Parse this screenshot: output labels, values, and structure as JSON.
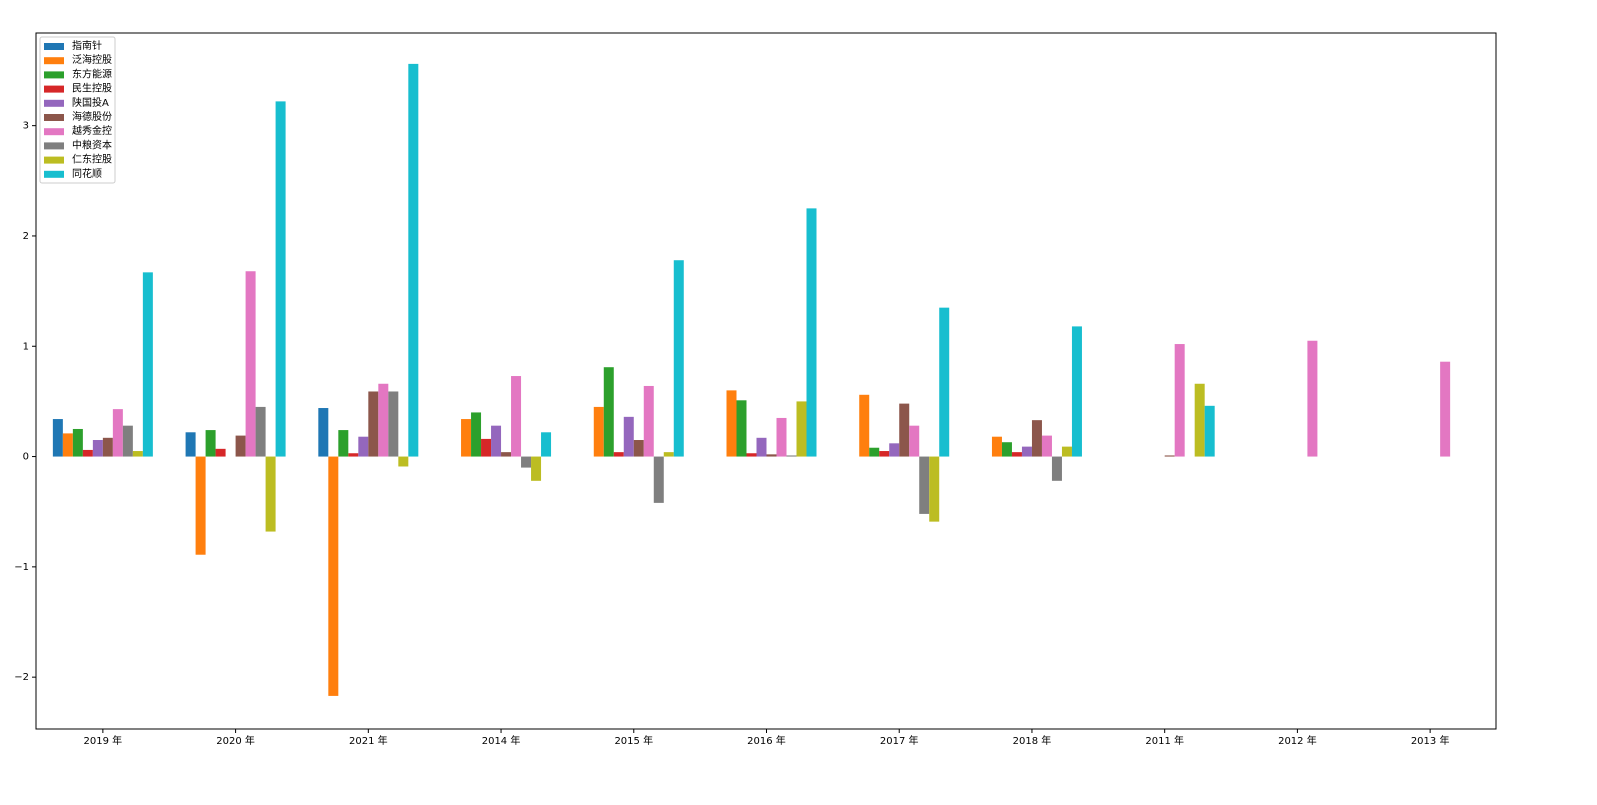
{
  "chart_data": {
    "type": "bar",
    "categories": [
      "2019 年",
      "2020 年",
      "2021 年",
      "2014 年",
      "2015 年",
      "2016 年",
      "2017 年",
      "2018 年",
      "2011 年",
      "2012 年",
      "2013 年"
    ],
    "series": [
      {
        "name": "指南针",
        "color": "#1f77b4",
        "values": [
          0.34,
          0.22,
          0.44,
          null,
          null,
          null,
          null,
          null,
          null,
          null,
          null
        ]
      },
      {
        "name": "泛海控股",
        "color": "#ff7f0e",
        "values": [
          0.21,
          -0.89,
          -2.17,
          0.34,
          0.45,
          0.6,
          0.56,
          0.18,
          null,
          null,
          null
        ]
      },
      {
        "name": "东方能源",
        "color": "#2ca02c",
        "values": [
          0.25,
          0.24,
          0.24,
          0.4,
          0.81,
          0.51,
          0.08,
          0.13,
          null,
          null,
          null
        ]
      },
      {
        "name": "民生控股",
        "color": "#d62728",
        "values": [
          0.06,
          0.07,
          0.03,
          0.16,
          0.04,
          0.03,
          0.05,
          0.04,
          null,
          null,
          null
        ]
      },
      {
        "name": "陕国投A",
        "color": "#9467bd",
        "values": [
          0.15,
          null,
          0.18,
          0.28,
          0.36,
          0.17,
          0.12,
          0.09,
          null,
          null,
          null
        ]
      },
      {
        "name": "海德股份",
        "color": "#8c564b",
        "values": [
          0.17,
          0.19,
          0.59,
          0.04,
          0.15,
          0.02,
          0.48,
          0.33,
          0.01,
          null,
          null
        ]
      },
      {
        "name": "越秀金控",
        "color": "#e377c2",
        "values": [
          0.43,
          1.68,
          0.66,
          0.73,
          0.64,
          0.35,
          0.28,
          0.19,
          1.02,
          1.05,
          0.86
        ]
      },
      {
        "name": "中粮资本",
        "color": "#7f7f7f",
        "values": [
          0.28,
          0.45,
          0.59,
          -0.1,
          -0.42,
          0.01,
          -0.52,
          -0.22,
          null,
          null,
          null
        ]
      },
      {
        "name": "仁东控股",
        "color": "#bcbd22",
        "values": [
          0.05,
          -0.68,
          -0.09,
          -0.22,
          0.04,
          0.5,
          -0.59,
          0.09,
          0.66,
          null,
          null
        ]
      },
      {
        "name": "同花顺",
        "color": "#17becf",
        "values": [
          1.67,
          3.22,
          3.56,
          0.22,
          1.78,
          2.25,
          1.35,
          1.18,
          0.46,
          null,
          null
        ]
      }
    ],
    "ylim": [
      -2.47,
      3.84
    ],
    "yticks": [
      {
        "value": -2,
        "label": "−2"
      },
      {
        "value": -1,
        "label": "−1"
      },
      0,
      1,
      2,
      3
    ],
    "legend": "upper left"
  }
}
